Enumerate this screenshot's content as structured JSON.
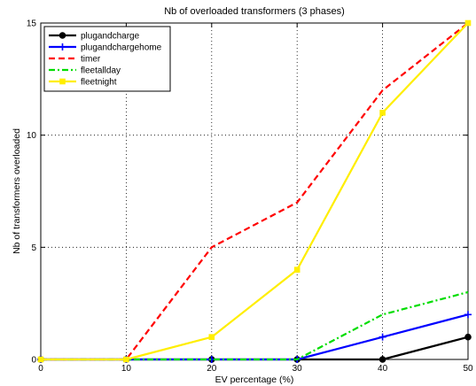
{
  "chart_data": {
    "type": "line",
    "title": "Nb of overloaded transformers (3 phases)",
    "xlabel": "EV percentage (%)",
    "ylabel": "Nb of transformers overloaded",
    "x": [
      0,
      10,
      20,
      30,
      40,
      50
    ],
    "xlim": [
      0,
      50
    ],
    "ylim": [
      0,
      15
    ],
    "xticks": [
      0,
      10,
      20,
      30,
      40,
      50
    ],
    "yticks": [
      0,
      5,
      10,
      15
    ],
    "grid": "dotted, major y and x",
    "legend_position": "top-left",
    "series": [
      {
        "name": "plugandcharge",
        "color": "#000000",
        "dash": "solid",
        "marker": "circle",
        "values": [
          0,
          0,
          0,
          0,
          0,
          1
        ]
      },
      {
        "name": "plugandchargehome",
        "color": "#0000ff",
        "dash": "solid",
        "marker": "plus",
        "values": [
          0,
          0,
          0,
          0,
          1,
          2
        ]
      },
      {
        "name": "timer",
        "color": "#ff0000",
        "dash": "dashed",
        "marker": "none",
        "values": [
          0,
          0,
          5,
          7,
          12,
          15
        ]
      },
      {
        "name": "fleetallday",
        "color": "#00dd00",
        "dash": "dashdot",
        "marker": "none",
        "values": [
          0,
          0,
          0,
          0,
          2,
          3
        ]
      },
      {
        "name": "fleetnight",
        "color": "#ffee00",
        "dash": "solid",
        "marker": "square",
        "values": [
          0,
          0,
          1,
          4,
          11,
          15
        ]
      }
    ]
  }
}
